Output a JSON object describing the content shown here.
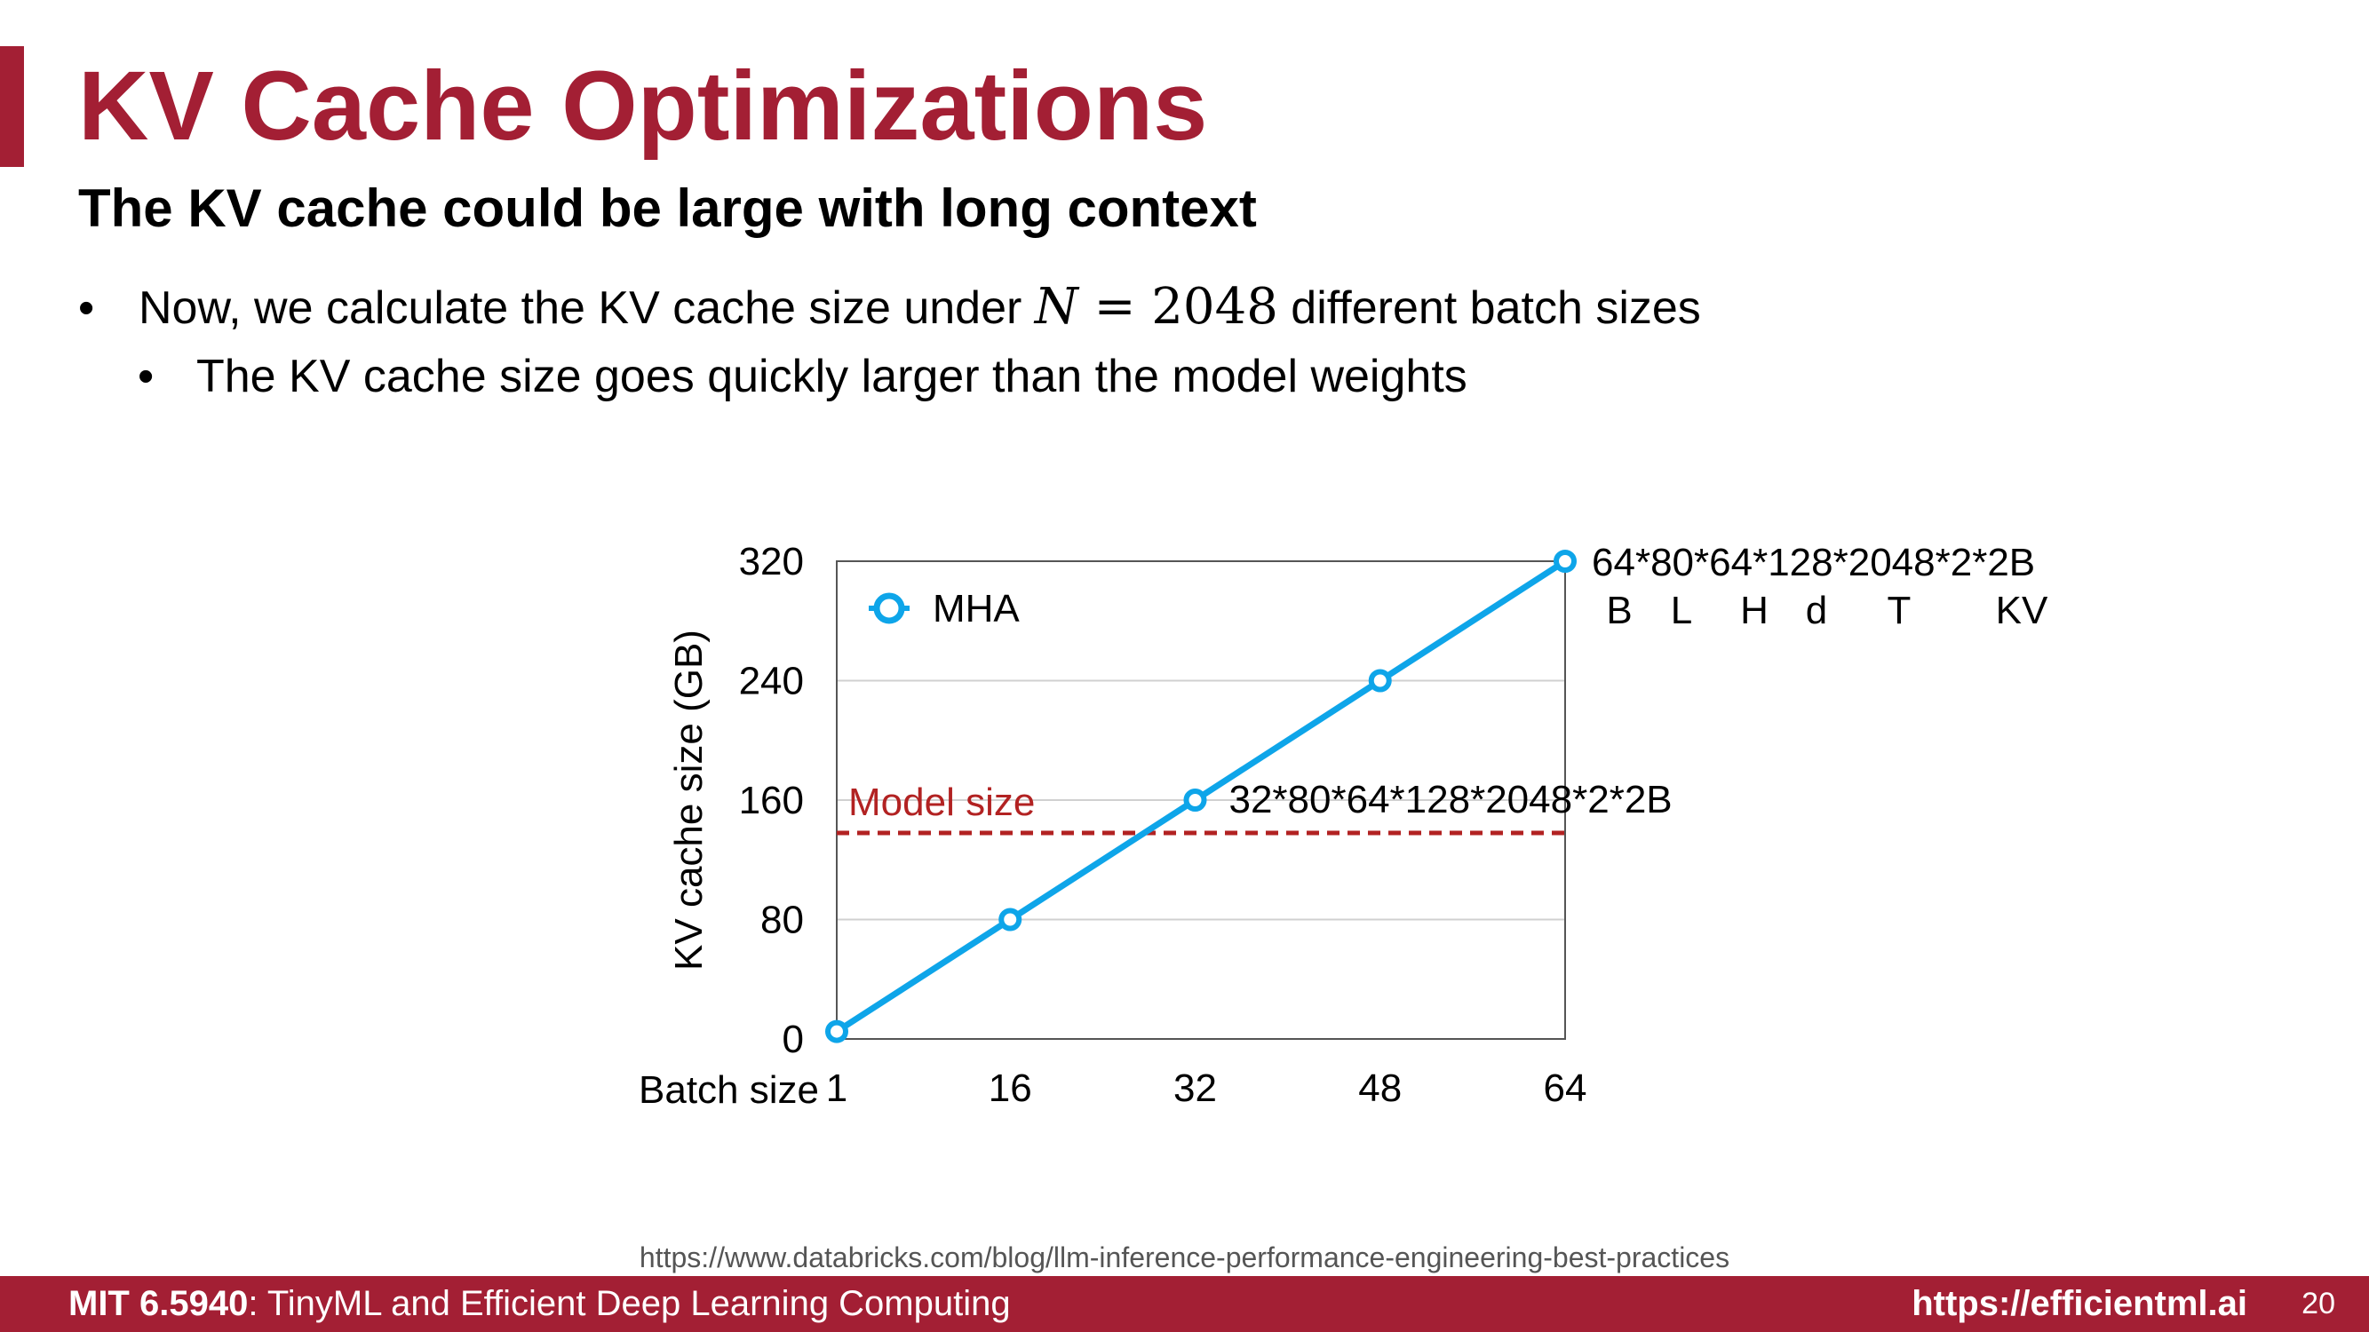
{
  "slide": {
    "title": "KV Cache Optimizations",
    "subtitle": "The KV cache could be large with long context",
    "bullet1_prefix": "Now, we calculate the KV cache size under ",
    "bullet1_math_var": "N",
    "bullet1_math_rest": " = 2048",
    "bullet1_suffix": " different batch sizes",
    "bullet2": "The KV cache size goes quickly larger than the model weights",
    "bullet_symbol": "•"
  },
  "chart_data": {
    "type": "line",
    "x": [
      1,
      16,
      32,
      48,
      64
    ],
    "xticks": [
      "1",
      "16",
      "32",
      "48",
      "64"
    ],
    "xlabel": "Batch size",
    "xlim": [
      1,
      64
    ],
    "ylabel": "KV cache size (GB)",
    "ylim": [
      0,
      320
    ],
    "yticks": [
      0,
      80,
      160,
      240,
      320
    ],
    "grid": true,
    "legend_position": "top-left",
    "series": [
      {
        "name": "MHA",
        "values": [
          5,
          80,
          160,
          240,
          320
        ],
        "color": "#0ea5e9"
      }
    ],
    "reference_line": {
      "label": "Model size",
      "value": 138,
      "color": "#b22222"
    },
    "annotations": [
      {
        "text": "32*80*64*128*2048*2*2B",
        "x": 32,
        "y": 160
      },
      {
        "text": "64*80*64*128*2048*2*2B",
        "x": 64,
        "y": 320
      }
    ],
    "legend_labels": [
      "B",
      "L",
      "H",
      "d",
      "T",
      "KV"
    ]
  },
  "source": "https://www.databricks.com/blog/llm-inference-performance-engineering-best-practices",
  "footer": {
    "course_code": "MIT 6.5940",
    "course_name": ": TinyML and Efficient Deep Learning Computing",
    "url": "https://efficientml.ai",
    "page": "20"
  },
  "colors": {
    "accent": "#a31f34",
    "series": "#0ea5e9",
    "model_line": "#b22222"
  }
}
